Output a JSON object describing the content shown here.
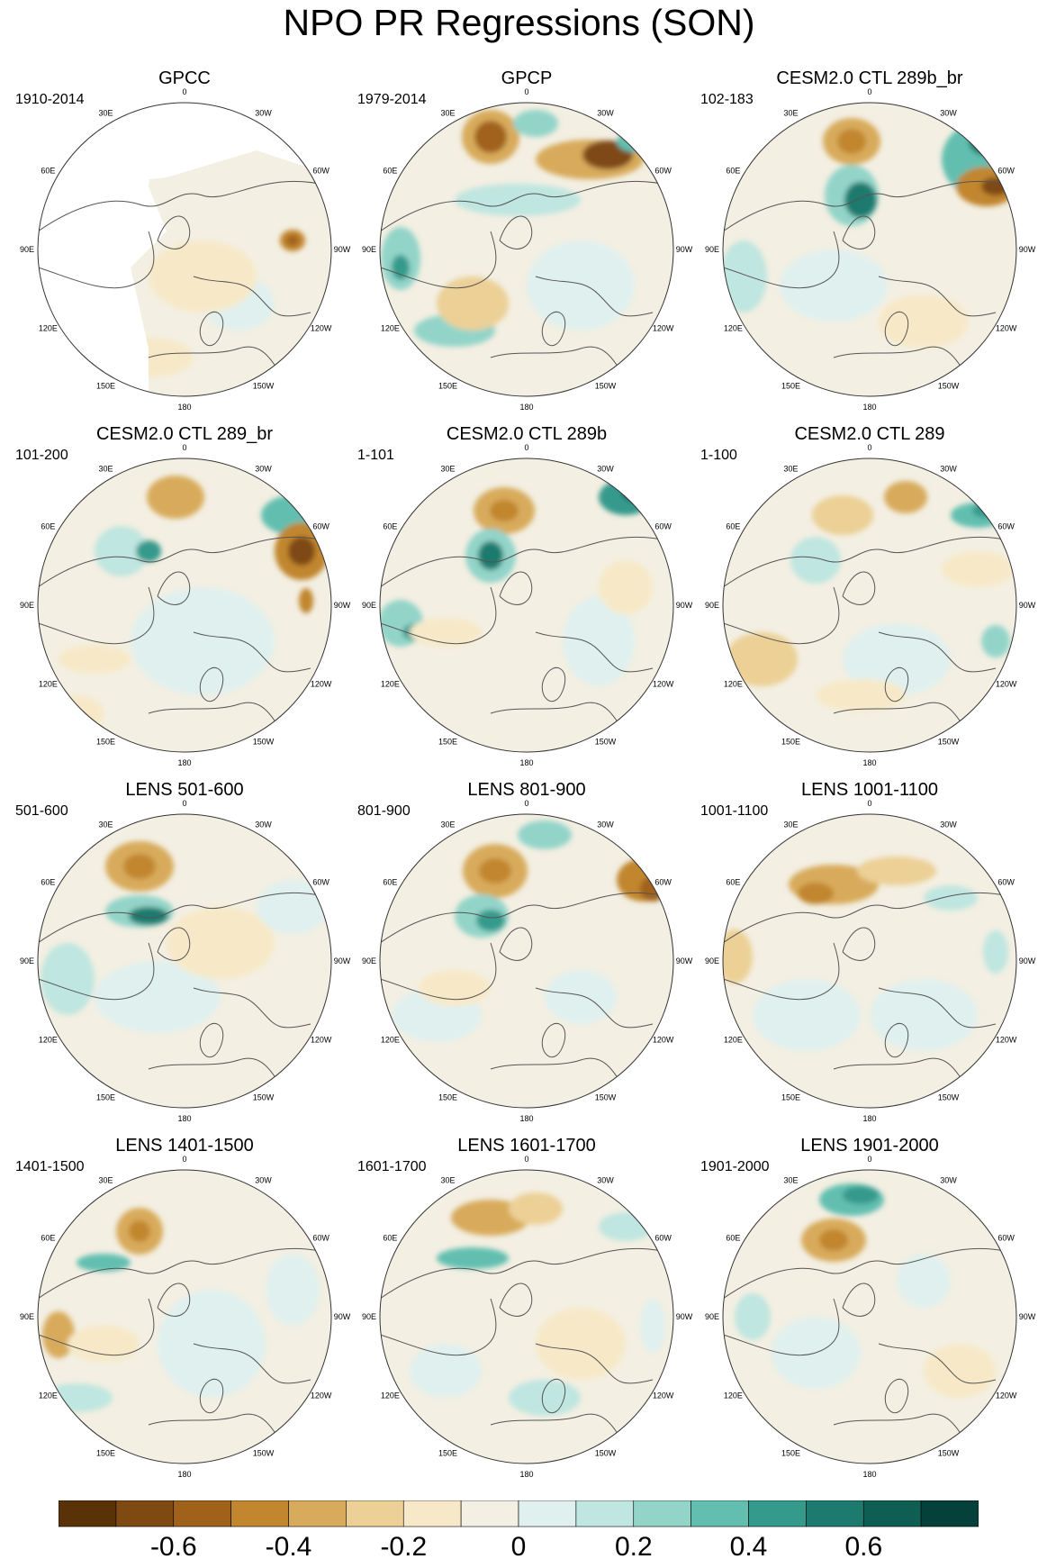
{
  "title": "NPO PR Regressions (SON)",
  "longitude_labels": [
    "180",
    "150E",
    "120E",
    "90E",
    "60E",
    "30E",
    "0",
    "30W",
    "60W",
    "90W",
    "120W",
    "150W"
  ],
  "panels": [
    {
      "title": "GPCC",
      "period": "1910-2014",
      "masked": true
    },
    {
      "title": "GPCP",
      "period": "1979-2014",
      "masked": false
    },
    {
      "title": "CESM2.0 CTL 289b_br",
      "period": "102-183",
      "masked": false
    },
    {
      "title": "CESM2.0 CTL 289_br",
      "period": "101-200",
      "masked": false
    },
    {
      "title": "CESM2.0 CTL 289b",
      "period": "1-101",
      "masked": false
    },
    {
      "title": "CESM2.0 CTL 289",
      "period": "1-100",
      "masked": false
    },
    {
      "title": "LENS 501-600",
      "period": "501-600",
      "masked": false
    },
    {
      "title": "LENS 801-900",
      "period": "801-900",
      "masked": false
    },
    {
      "title": "LENS 1001-1100",
      "period": "1001-1100",
      "masked": false
    },
    {
      "title": "LENS 1401-1500",
      "period": "1401-1500",
      "masked": false
    },
    {
      "title": "LENS 1601-1700",
      "period": "1601-1700",
      "masked": false
    },
    {
      "title": "LENS 1901-2000",
      "period": "1901-2000",
      "masked": false
    }
  ],
  "colorbar": {
    "colors": [
      "#5a3208",
      "#7e4a12",
      "#a0621b",
      "#c1862e",
      "#d8ab5c",
      "#ecd096",
      "#f7e9c8",
      "#f3efe2",
      "#e0f0ee",
      "#bfe6e0",
      "#93d4c9",
      "#62bfb0",
      "#349a8c",
      "#1c7a6e",
      "#0f5e53",
      "#06403a"
    ],
    "tick_labels": [
      "-0.6",
      "-0.4",
      "-0.2",
      "0",
      "0.2",
      "0.4",
      "0.6"
    ]
  }
}
